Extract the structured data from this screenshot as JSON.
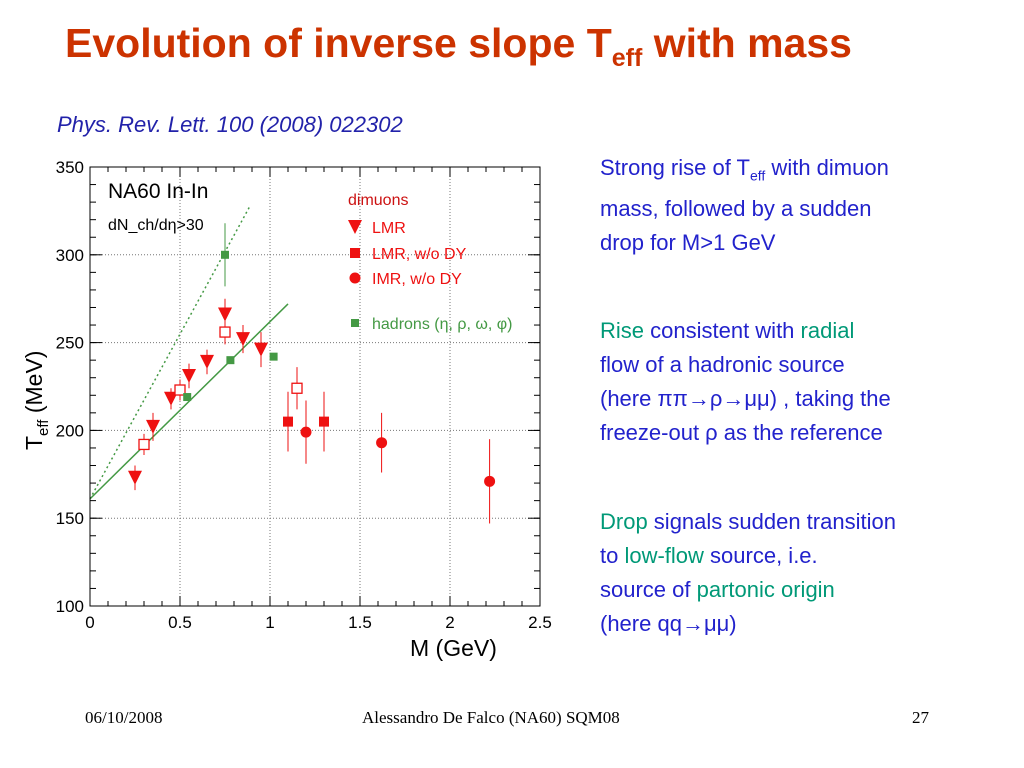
{
  "slide": {
    "title_main": "Evolution of inverse slope T",
    "title_sub": "eff",
    "title_end": " with mass",
    "reference": "Phys. Rev. Lett. 100 (2008) 022302"
  },
  "text_blocks": {
    "b1_l1a": "Strong rise of T",
    "b1_l1s": "eff",
    "b1_l1b": " with dimuon",
    "b1_l2": "mass, followed by a sudden",
    "b1_l3": "drop for M>1 GeV",
    "b2_l1a": "Rise",
    "b2_l1b": " consistent with ",
    "b2_l1c": "radial",
    "b2_l2": "flow of a hadronic source",
    "b2_l3": "(here ππ→ρ→μμ) , taking the",
    "b2_l4": "freeze-out  ρ as the reference",
    "b3_l1a": "Drop",
    "b3_l1b": " signals sudden transition",
    "b3_l2a": "to ",
    "b3_l2b": "low-flow",
    "b3_l2c": " source, i.e.",
    "b3_l3a": "source of  ",
    "b3_l3b": "partonic origin",
    "b3_l4": "(here qq→μμ)"
  },
  "footer": {
    "date": "06/10/2008",
    "author": "Alessandro De Falco (NA60) SQM08",
    "page": "27"
  },
  "chart_data": {
    "type": "scatter",
    "xlabel": "M (GeV)",
    "ylabel_main": "T",
    "ylabel_sub": "eff",
    "ylabel_end": " (MeV)",
    "xlim": [
      0,
      2.5
    ],
    "ylim": [
      100,
      350
    ],
    "xticks": [
      "0",
      "0.5",
      "1",
      "1.5",
      "2",
      "2.5"
    ],
    "yticks": [
      "100",
      "150",
      "200",
      "250",
      "300",
      "350"
    ],
    "grid": true,
    "experiment_label": "NA60 In-In",
    "cut_label": "dN_ch/dη>30",
    "legend_title": "dimuons",
    "hadron_legend": "hadrons (η, ρ, ω, φ)",
    "colors": {
      "dimuon": "#ee1111",
      "hadron": "#449944",
      "legend_title": "#cc1111"
    },
    "series": [
      {
        "name": "LMR",
        "marker": "triangle-down",
        "points": [
          [
            0.25,
            173,
            7
          ],
          [
            0.35,
            202,
            8
          ],
          [
            0.45,
            218,
            6
          ],
          [
            0.55,
            231,
            7
          ],
          [
            0.65,
            239,
            7
          ],
          [
            0.75,
            266,
            9
          ],
          [
            0.85,
            252,
            8
          ],
          [
            0.95,
            246,
            10
          ]
        ]
      },
      {
        "name": "LMR, w/o DY",
        "marker": "open-square",
        "points": [
          [
            0.3,
            192,
            6
          ],
          [
            0.5,
            223,
            6
          ],
          [
            0.75,
            256,
            7
          ],
          [
            1.15,
            224,
            12
          ]
        ]
      },
      {
        "name": "LMR, w/o DY",
        "marker": "filled-square",
        "points": [
          [
            1.1,
            205,
            17
          ],
          [
            1.3,
            205,
            17
          ]
        ]
      },
      {
        "name": "IMR,  w/o DY",
        "marker": "circle",
        "points": [
          [
            1.2,
            199,
            18
          ],
          [
            1.62,
            193,
            17
          ],
          [
            2.22,
            171,
            24
          ]
        ]
      },
      {
        "name": "hadrons",
        "marker": "small-square",
        "points": [
          [
            0.54,
            219,
            0
          ],
          [
            0.75,
            300,
            18
          ],
          [
            0.78,
            240,
            0
          ],
          [
            1.02,
            242,
            0
          ]
        ]
      }
    ],
    "fits": [
      {
        "style": "solid",
        "from": [
          0,
          161
        ],
        "to": [
          1.1,
          272
        ]
      },
      {
        "style": "dotted",
        "from": [
          0,
          161
        ],
        "to": [
          0.89,
          328
        ]
      }
    ]
  }
}
